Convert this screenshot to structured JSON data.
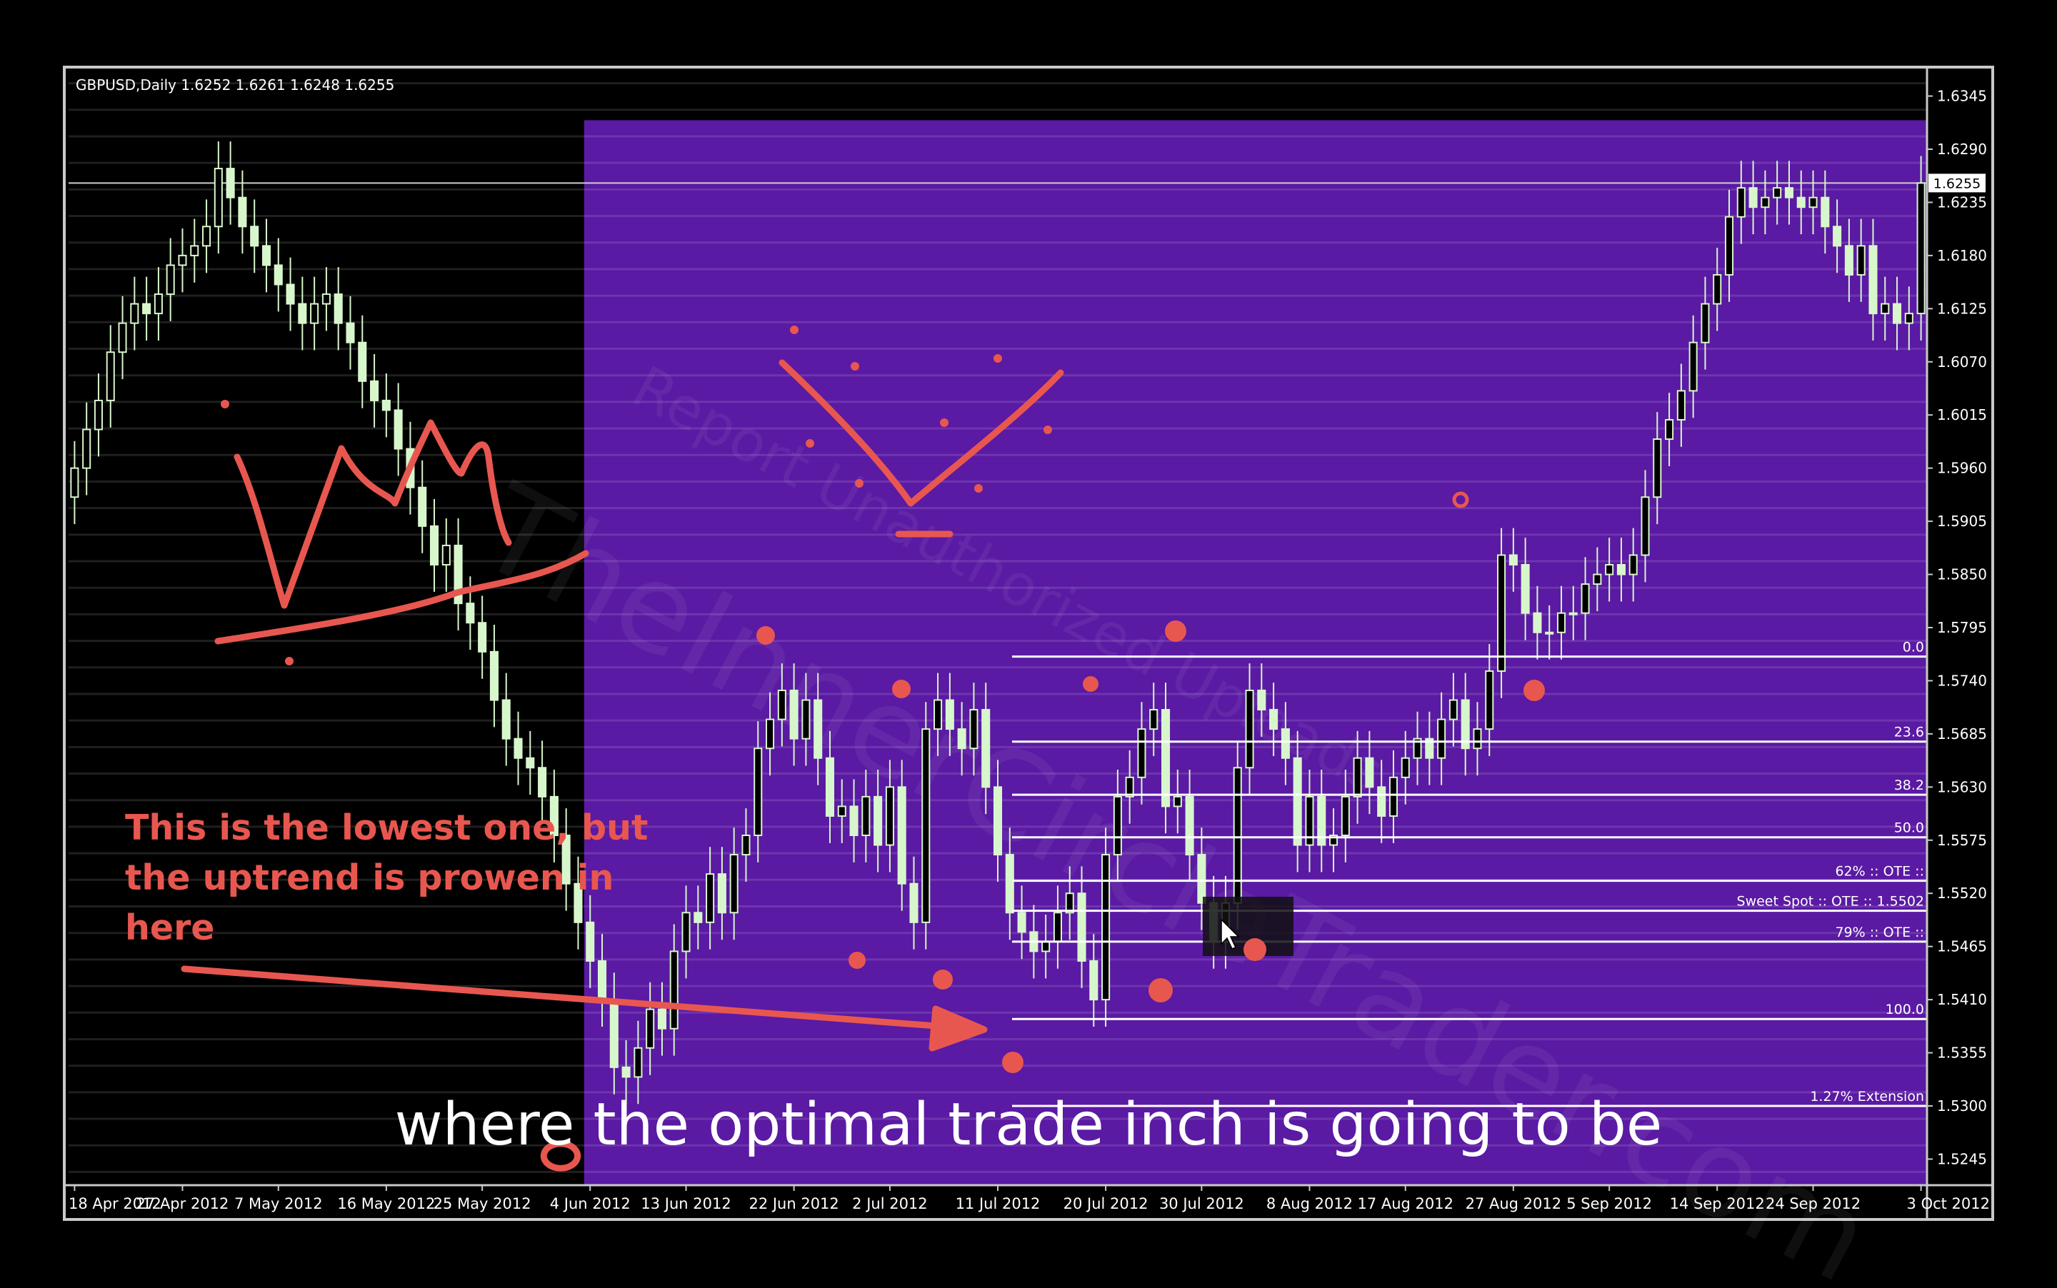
{
  "window": {
    "symbol_title": "GBPUSD,Daily  1.6252 1.6261 1.6248 1.6255",
    "current_price_label": "1.6255"
  },
  "colors": {
    "background": "#000000",
    "highlight": "#5a1aa3",
    "candle": "#d8f6cc",
    "annotation": "#e8574f",
    "fib_line": "#ffffff"
  },
  "chart_data": {
    "type": "candlestick",
    "title": "GBPUSD,Daily",
    "ohlc_header": "1.6252 1.6261 1.6248 1.6255",
    "ylim": [
      1.5218,
      1.6372
    ],
    "y_ticks": [
      1.6345,
      1.629,
      1.6235,
      1.618,
      1.6125,
      1.607,
      1.6015,
      1.596,
      1.5905,
      1.585,
      1.5795,
      1.574,
      1.5685,
      1.563,
      1.5575,
      1.552,
      1.5465,
      1.541,
      1.5355,
      1.53,
      1.5245
    ],
    "y_tick_labels": [
      "1.6345",
      "1.6290",
      "1.6235",
      "1.6180",
      "1.6125",
      "1.6070",
      "1.6015",
      "1.5960",
      "1.5905",
      "1.5850",
      "1.5795",
      "1.5740",
      "1.5685",
      "1.5630",
      "1.5575",
      "1.5520",
      "1.5465",
      "1.5410",
      "1.5355",
      "1.5300",
      "1.5245"
    ],
    "x_tick_labels": [
      "18 Apr 2012",
      "27 Apr 2012",
      "7 May 2012",
      "16 May 2012",
      "25 May 2012",
      "4 Jun 2012",
      "13 Jun 2012",
      "22 Jun 2012",
      "2 Jul 2012",
      "11 Jul 2012",
      "20 Jul 2012",
      "30 Jul 2012",
      "8 Aug 2012",
      "17 Aug 2012",
      "27 Aug 2012",
      "5 Sep 2012",
      "14 Sep 2012",
      "24 Sep 2012",
      "3 Oct 2012"
    ],
    "current_price": 1.6255,
    "highlight_zone": {
      "from_date": "4 Jun 2012",
      "to_date": "3 Oct 2012",
      "price_from": 1.5218,
      "price_to": 1.632
    },
    "fib_levels": [
      {
        "label": "0.0",
        "price": 1.5765
      },
      {
        "label": "23.6",
        "price": 1.5677
      },
      {
        "label": "38.2",
        "price": 1.5622
      },
      {
        "label": "50.0",
        "price": 1.5578
      },
      {
        "label": "62% :: OTE ::",
        "price": 1.5533
      },
      {
        "label": "Sweet Spot :: OTE :: 1.5502",
        "price": 1.5502
      },
      {
        "label": "79% :: OTE ::",
        "price": 1.547
      },
      {
        "label": "100.0",
        "price": 1.539
      },
      {
        "label": "1.27% Extension",
        "price": 1.53
      }
    ],
    "closes": [
      1.596,
      1.6,
      1.603,
      1.608,
      1.611,
      1.613,
      1.612,
      1.614,
      1.617,
      1.618,
      1.619,
      1.621,
      1.627,
      1.624,
      1.621,
      1.619,
      1.617,
      1.615,
      1.613,
      1.611,
      1.613,
      1.614,
      1.611,
      1.609,
      1.605,
      1.603,
      1.602,
      1.598,
      1.594,
      1.59,
      1.586,
      1.588,
      1.582,
      1.58,
      1.577,
      1.572,
      1.568,
      1.566,
      1.565,
      1.562,
      1.558,
      1.553,
      1.549,
      1.545,
      1.541,
      1.534,
      1.533,
      1.536,
      1.54,
      1.538,
      1.546,
      1.55,
      1.549,
      1.554,
      1.55,
      1.556,
      1.558,
      1.567,
      1.57,
      1.573,
      1.568,
      1.572,
      1.566,
      1.56,
      1.561,
      1.558,
      1.562,
      1.557,
      1.563,
      1.553,
      1.549,
      1.569,
      1.572,
      1.569,
      1.567,
      1.571,
      1.563,
      1.556,
      1.55,
      1.548,
      1.546,
      1.547,
      1.55,
      1.552,
      1.545,
      1.541,
      1.556,
      1.562,
      1.564,
      1.569,
      1.571,
      1.561,
      1.562,
      1.556,
      1.551,
      1.547,
      1.551,
      1.565,
      1.573,
      1.571,
      1.569,
      1.566,
      1.557,
      1.562,
      1.557,
      1.558,
      1.562,
      1.566,
      1.563,
      1.56,
      1.564,
      1.566,
      1.568,
      1.566,
      1.57,
      1.572,
      1.567,
      1.569,
      1.575,
      1.587,
      1.586,
      1.581,
      1.579,
      1.579,
      1.581,
      1.581,
      1.584,
      1.585,
      1.586,
      1.585,
      1.587,
      1.593,
      1.599,
      1.601,
      1.604,
      1.609,
      1.613,
      1.616,
      1.622,
      1.625,
      1.623,
      1.624,
      1.625,
      1.624,
      1.623,
      1.624,
      1.621,
      1.619,
      1.616,
      1.619,
      1.612,
      1.613,
      1.611,
      1.612,
      1.6255
    ]
  },
  "annotations": {
    "note_text": "This is the lowest one, but the uptrend is prowen in here"
  },
  "caption": {
    "text": "where the optimal trade inch is going to be"
  }
}
